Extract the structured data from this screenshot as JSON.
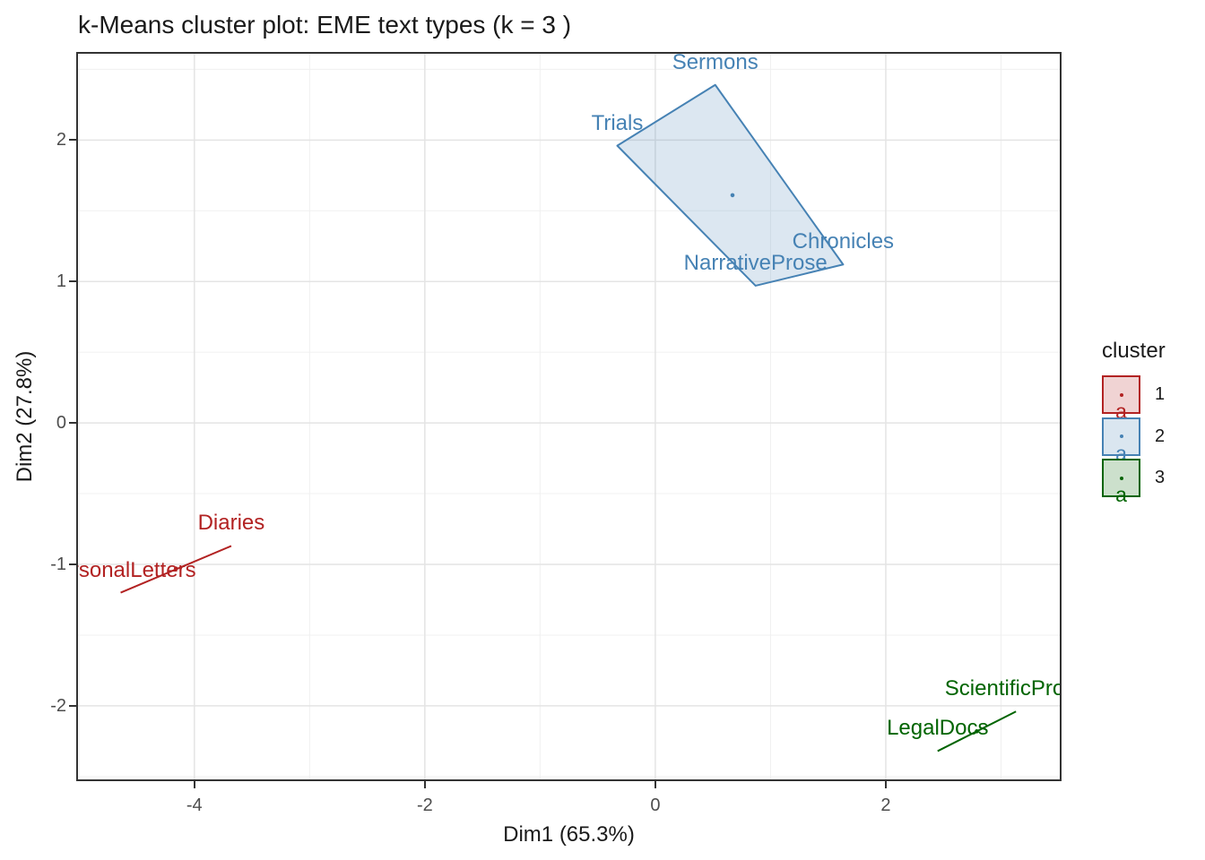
{
  "chart_data": {
    "type": "scatter",
    "title": "k-Means cluster plot: EME text types (k = 3 )",
    "xlabel": "Dim1 (65.3%)",
    "ylabel": "Dim2 (27.8%)",
    "xlim": [
      -5.01,
      3.51
    ],
    "ylim": [
      -2.52,
      2.61
    ],
    "x_ticks": [
      -4,
      -2,
      0,
      2
    ],
    "y_ticks": [
      -2,
      -1,
      0,
      1,
      2
    ],
    "x_minor_gridlines": [
      -5,
      -3,
      -1,
      1,
      3
    ],
    "y_minor_gridlines": [
      -2.5,
      -1.5,
      -0.5,
      0.5,
      1.5,
      2.5
    ],
    "grid": true,
    "legend_position": "right",
    "clusters": [
      {
        "id": "1",
        "color": "#B22222",
        "fill": "rgba(178,34,34,0.19)",
        "points": [
          {
            "label": "PersonalLetters",
            "x": -4.64,
            "y": -1.2
          },
          {
            "label": "Diaries",
            "x": -3.68,
            "y": -0.87
          }
        ],
        "centroid": {
          "x": -4.16,
          "y": -1.03
        }
      },
      {
        "id": "2",
        "color": "#4682B4",
        "fill": "rgba(70,130,180,0.19)",
        "points": [
          {
            "label": "Trials",
            "x": -0.33,
            "y": 1.96
          },
          {
            "label": "Sermons",
            "x": 0.52,
            "y": 2.39
          },
          {
            "label": "Chronicles",
            "x": 1.63,
            "y": 1.12
          },
          {
            "label": "NarrativeProse",
            "x": 0.87,
            "y": 0.97
          }
        ],
        "centroid": {
          "x": 0.67,
          "y": 1.61
        }
      },
      {
        "id": "3",
        "color": "#006400",
        "fill": "rgba(0,100,0,0.19)",
        "points": [
          {
            "label": "LegalDocs",
            "x": 2.45,
            "y": -2.32
          },
          {
            "label": "ScientificProse",
            "x": 3.13,
            "y": -2.04
          }
        ],
        "centroid": {
          "x": 2.79,
          "y": -2.18
        }
      }
    ]
  },
  "legend": {
    "title": "cluster",
    "key_letter": "a",
    "items": [
      {
        "label": "1",
        "color": "#B22222",
        "fill": "#F0D3D3"
      },
      {
        "label": "2",
        "color": "#4682B4",
        "fill": "#DAE6F0"
      },
      {
        "label": "3",
        "color": "#006400",
        "fill": "#CCE0CC"
      }
    ]
  },
  "style": {
    "grid_major_color": "#E4E4E4",
    "grid_minor_color": "#F0F0F0",
    "panel_border_color": "#333333",
    "tick_label_color": "#4d4d4d"
  }
}
